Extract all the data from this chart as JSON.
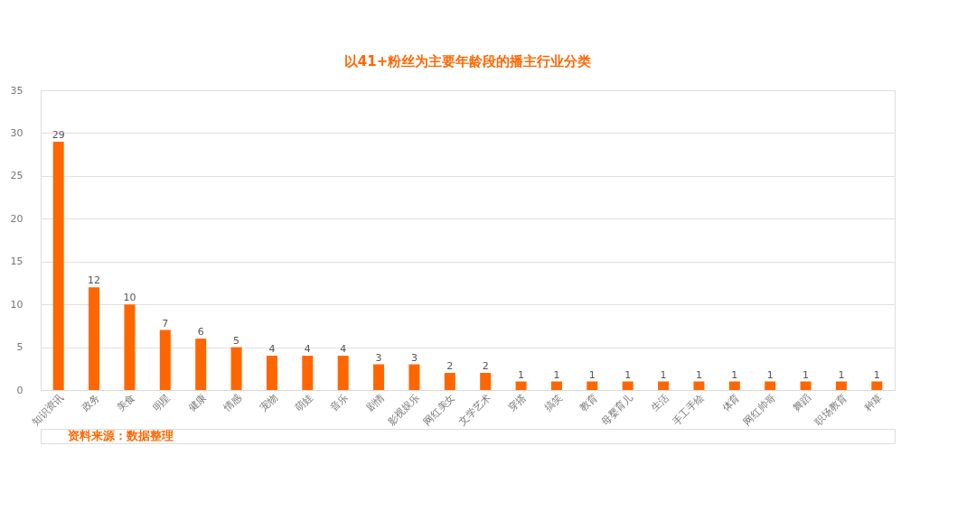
{
  "chart_data": {
    "type": "bar",
    "title": "以41+粉丝为主要年龄段的播主行业分类",
    "categories": [
      "知识资讯",
      "政务",
      "美食",
      "明星",
      "健康",
      "情感",
      "宠物",
      "萌娃",
      "音乐",
      "剧情",
      "影视娱乐",
      "网红美女",
      "文学艺术",
      "穿搭",
      "搞笑",
      "教育",
      "母婴育儿",
      "生活",
      "手工手绘",
      "体育",
      "网红帅哥",
      "舞蹈",
      "职场教育",
      "种草"
    ],
    "values": [
      29,
      12,
      10,
      7,
      6,
      5,
      4,
      4,
      4,
      3,
      3,
      2,
      2,
      1,
      1,
      1,
      1,
      1,
      1,
      1,
      1,
      1,
      1,
      1
    ],
    "color": "#ff6600",
    "ylim": [
      0,
      35
    ],
    "yticks": [
      0,
      5,
      10,
      15,
      20,
      25,
      30,
      35
    ],
    "grid": "y",
    "data_labels": true,
    "annotations": [
      "资料来源：数据整理"
    ]
  }
}
